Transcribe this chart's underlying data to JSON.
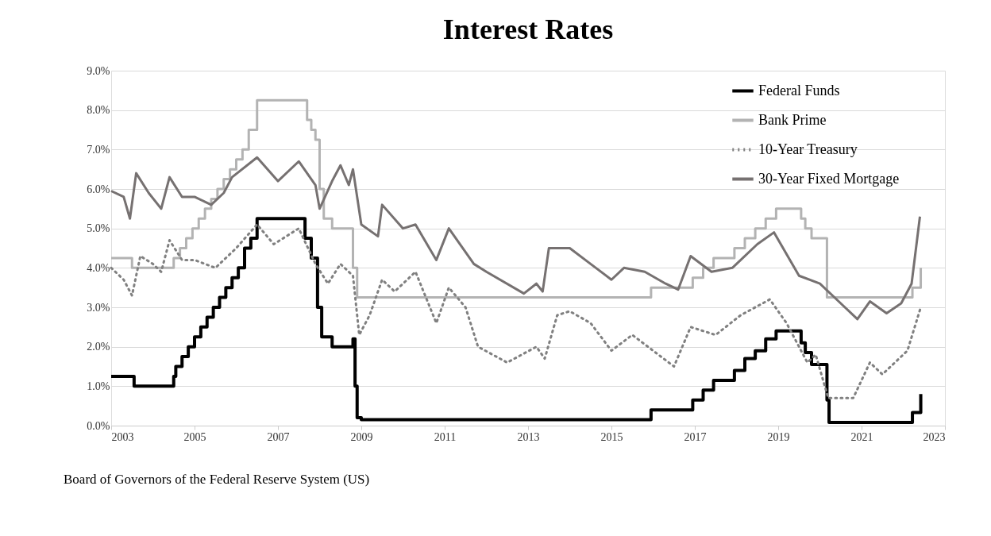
{
  "chart_data": {
    "type": "line",
    "title": "Interest Rates",
    "annotations": [
      "Board of Governors of the Federal Reserve System (US)"
    ],
    "xlim": [
      2003,
      2023
    ],
    "xticks": [
      2003,
      2005,
      2007,
      2009,
      2011,
      2013,
      2015,
      2017,
      2019,
      2021,
      2023
    ],
    "ylim": [
      0,
      9
    ],
    "yticks": [
      {
        "value": 0,
        "label": "0.0%"
      },
      {
        "value": 1,
        "label": "1.0%"
      },
      {
        "value": 2,
        "label": "2.0%"
      },
      {
        "value": 3,
        "label": "3.0%"
      },
      {
        "value": 4,
        "label": "4.0%"
      },
      {
        "value": 5,
        "label": "5.0%"
      },
      {
        "value": 6,
        "label": "6.0%"
      },
      {
        "value": 7,
        "label": "7.0%"
      },
      {
        "value": 8,
        "label": "8.0%"
      },
      {
        "value": 9,
        "label": "9.0%"
      }
    ],
    "grid": "y",
    "legend": "top right",
    "series": [
      {
        "name": "Federal Funds",
        "type": "step",
        "color": "#000000",
        "line_style": "solid",
        "x": [
          2003,
          2003.55,
          2004.5,
          2004.55,
          2004.7,
          2004.85,
          2005.0,
          2005.15,
          2005.3,
          2005.45,
          2005.6,
          2005.75,
          2005.9,
          2006.05,
          2006.2,
          2006.35,
          2006.5,
          2007.65,
          2007.8,
          2007.95,
          2008.05,
          2008.3,
          2008.8,
          2008.85,
          2008.9,
          2009.0,
          2015.95,
          2016.95,
          2017.2,
          2017.45,
          2017.95,
          2018.2,
          2018.45,
          2018.7,
          2018.95,
          2019.55,
          2019.65,
          2019.8,
          2020.17,
          2020.22,
          2022.22,
          2022.35,
          2022.42
        ],
        "values": [
          1.25,
          1.0,
          1.25,
          1.5,
          1.75,
          2.0,
          2.25,
          2.5,
          2.75,
          3.0,
          3.25,
          3.5,
          3.75,
          4.0,
          4.5,
          4.75,
          5.25,
          4.75,
          4.25,
          3.0,
          2.25,
          2.0,
          2.2,
          1.0,
          0.2,
          0.15,
          0.4,
          0.65,
          0.9,
          1.15,
          1.4,
          1.7,
          1.9,
          2.2,
          2.4,
          2.1,
          1.85,
          1.55,
          0.65,
          0.08,
          0.33,
          0.33,
          0.8
        ]
      },
      {
        "name": "Bank Prime",
        "type": "step",
        "color": "#b3b3b3",
        "line_style": "solid",
        "x": [
          2003,
          2003.5,
          2004.5,
          2004.65,
          2004.8,
          2004.95,
          2005.1,
          2005.25,
          2005.4,
          2005.55,
          2005.7,
          2005.85,
          2006.0,
          2006.15,
          2006.3,
          2006.5,
          2007.7,
          2007.8,
          2007.9,
          2008.0,
          2008.1,
          2008.3,
          2008.8,
          2008.9,
          2015.95,
          2016.95,
          2017.2,
          2017.45,
          2017.95,
          2018.2,
          2018.45,
          2018.7,
          2018.95,
          2019.55,
          2019.65,
          2019.8,
          2020.17,
          2020.22,
          2022.22,
          2022.35,
          2022.42
        ],
        "values": [
          4.25,
          4.0,
          4.25,
          4.5,
          4.75,
          5.0,
          5.25,
          5.5,
          5.75,
          6.0,
          6.25,
          6.5,
          6.75,
          7.0,
          7.5,
          8.25,
          7.75,
          7.5,
          7.25,
          6.0,
          5.25,
          5.0,
          4.0,
          3.25,
          3.5,
          3.75,
          4.0,
          4.25,
          4.5,
          4.75,
          5.0,
          5.25,
          5.5,
          5.25,
          5.0,
          4.75,
          3.25,
          3.25,
          3.5,
          3.5,
          4.0
        ]
      },
      {
        "name": "10-Year Treasury",
        "type": "line",
        "color": "#808080",
        "line_style": "dotted",
        "x": [
          2003,
          2003.3,
          2003.5,
          2003.7,
          2004.0,
          2004.2,
          2004.4,
          2004.7,
          2005.0,
          2005.5,
          2006.0,
          2006.5,
          2006.9,
          2007.5,
          2007.9,
          2008.2,
          2008.5,
          2008.8,
          2008.95,
          2009.2,
          2009.5,
          2009.8,
          2010.3,
          2010.8,
          2011.1,
          2011.5,
          2011.8,
          2012.5,
          2013.2,
          2013.4,
          2013.7,
          2014.0,
          2014.5,
          2015.0,
          2015.5,
          2016.0,
          2016.5,
          2016.9,
          2017.5,
          2018.1,
          2018.8,
          2019.2,
          2019.7,
          2019.9,
          2020.2,
          2020.8,
          2021.2,
          2021.5,
          2021.8,
          2022.1,
          2022.42
        ],
        "values": [
          4.0,
          3.7,
          3.3,
          4.3,
          4.1,
          3.9,
          4.7,
          4.2,
          4.2,
          4.0,
          4.5,
          5.1,
          4.6,
          5.0,
          4.1,
          3.6,
          4.1,
          3.8,
          2.3,
          2.8,
          3.7,
          3.4,
          3.9,
          2.6,
          3.5,
          3.0,
          2.0,
          1.6,
          2.0,
          1.7,
          2.8,
          2.9,
          2.6,
          1.9,
          2.3,
          1.9,
          1.5,
          2.5,
          2.3,
          2.8,
          3.2,
          2.6,
          1.6,
          1.8,
          0.7,
          0.7,
          1.6,
          1.3,
          1.6,
          1.9,
          3.0
        ]
      },
      {
        "name": "30-Year Fixed Mortgage",
        "type": "line",
        "color": "#767171",
        "line_style": "solid",
        "x": [
          2003,
          2003.3,
          2003.45,
          2003.6,
          2003.9,
          2004.2,
          2004.4,
          2004.7,
          2005.0,
          2005.4,
          2005.7,
          2005.9,
          2006.5,
          2007.0,
          2007.5,
          2007.9,
          2008.0,
          2008.3,
          2008.5,
          2008.7,
          2008.8,
          2009.0,
          2009.4,
          2009.5,
          2010.0,
          2010.3,
          2010.8,
          2011.1,
          2011.7,
          2012.0,
          2012.9,
          2013.2,
          2013.35,
          2013.5,
          2014.0,
          2014.5,
          2015.0,
          2015.3,
          2015.8,
          2016.3,
          2016.6,
          2016.9,
          2017.4,
          2017.9,
          2018.5,
          2018.9,
          2019.5,
          2020.0,
          2020.5,
          2020.9,
          2021.2,
          2021.6,
          2021.95,
          2022.2,
          2022.4
        ],
        "values": [
          5.95,
          5.8,
          5.25,
          6.4,
          5.9,
          5.5,
          6.3,
          5.8,
          5.8,
          5.6,
          5.9,
          6.3,
          6.8,
          6.2,
          6.7,
          6.1,
          5.5,
          6.2,
          6.6,
          6.1,
          6.5,
          5.1,
          4.8,
          5.6,
          5.0,
          5.1,
          4.2,
          5.0,
          4.1,
          3.9,
          3.35,
          3.6,
          3.4,
          4.5,
          4.5,
          4.1,
          3.7,
          4.0,
          3.9,
          3.6,
          3.45,
          4.3,
          3.9,
          4.0,
          4.6,
          4.9,
          3.8,
          3.6,
          3.1,
          2.7,
          3.15,
          2.85,
          3.1,
          3.6,
          5.3
        ]
      }
    ]
  }
}
